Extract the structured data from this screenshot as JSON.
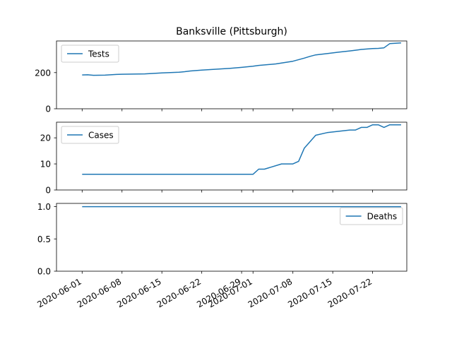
{
  "chart_data": [
    {
      "type": "line",
      "title": "Banksville (Pittsburgh)",
      "x": [
        "2020-06-01",
        "2020-06-02",
        "2020-06-03",
        "2020-06-05",
        "2020-06-07",
        "2020-06-08",
        "2020-06-12",
        "2020-06-15",
        "2020-06-18",
        "2020-06-19",
        "2020-06-20",
        "2020-06-22",
        "2020-06-25",
        "2020-06-27",
        "2020-06-29",
        "2020-07-01",
        "2020-07-02",
        "2020-07-05",
        "2020-07-07",
        "2020-07-08",
        "2020-07-10",
        "2020-07-11",
        "2020-07-12",
        "2020-07-14",
        "2020-07-16",
        "2020-07-18",
        "2020-07-19",
        "2020-07-20",
        "2020-07-22",
        "2020-07-23",
        "2020-07-24",
        "2020-07-25",
        "2020-07-26",
        "2020-07-27"
      ],
      "series": [
        {
          "name": "Tests",
          "values": [
            187,
            188,
            185,
            186,
            190,
            191,
            193,
            198,
            202,
            205,
            209,
            214,
            220,
            224,
            229,
            235,
            240,
            248,
            258,
            263,
            280,
            290,
            298,
            305,
            313,
            320,
            324,
            328,
            333,
            334,
            337,
            360,
            362,
            364
          ]
        }
      ],
      "ylim": [
        0,
        375
      ],
      "yticks": [
        "0",
        "200"
      ],
      "legend": "top-left",
      "grid": false,
      "color": "#1f77b4"
    },
    {
      "type": "line",
      "x": [
        "2020-06-01",
        "2020-06-30",
        "2020-07-01",
        "2020-07-02",
        "2020-07-03",
        "2020-07-06",
        "2020-07-07",
        "2020-07-08",
        "2020-07-09",
        "2020-07-10",
        "2020-07-12",
        "2020-07-14",
        "2020-07-18",
        "2020-07-19",
        "2020-07-20",
        "2020-07-21",
        "2020-07-22",
        "2020-07-23",
        "2020-07-24",
        "2020-07-25",
        "2020-07-27"
      ],
      "series": [
        {
          "name": "Cases",
          "values": [
            6,
            6,
            6,
            8,
            8,
            10,
            10,
            10,
            11,
            16,
            21,
            22,
            23,
            23,
            24,
            24,
            25,
            25,
            24,
            25,
            25
          ]
        }
      ],
      "ylim": [
        0,
        26
      ],
      "yticks": [
        "0",
        "10",
        "20"
      ],
      "legend": "top-left",
      "grid": false,
      "color": "#1f77b4"
    },
    {
      "type": "line",
      "x": [
        "2020-06-01",
        "2020-07-27"
      ],
      "series": [
        {
          "name": "Deaths",
          "values": [
            1,
            1
          ]
        }
      ],
      "ylim": [
        0,
        1.05
      ],
      "yticks": [
        "0.0",
        "0.5",
        "1.0"
      ],
      "legend": "right",
      "grid": false,
      "color": "#1f77b4",
      "xticks": [
        "2020-06-01",
        "2020-06-08",
        "2020-06-15",
        "2020-06-22",
        "2020-06-29",
        "2020-07-01",
        "2020-07-08",
        "2020-07-15",
        "2020-07-22"
      ]
    }
  ]
}
